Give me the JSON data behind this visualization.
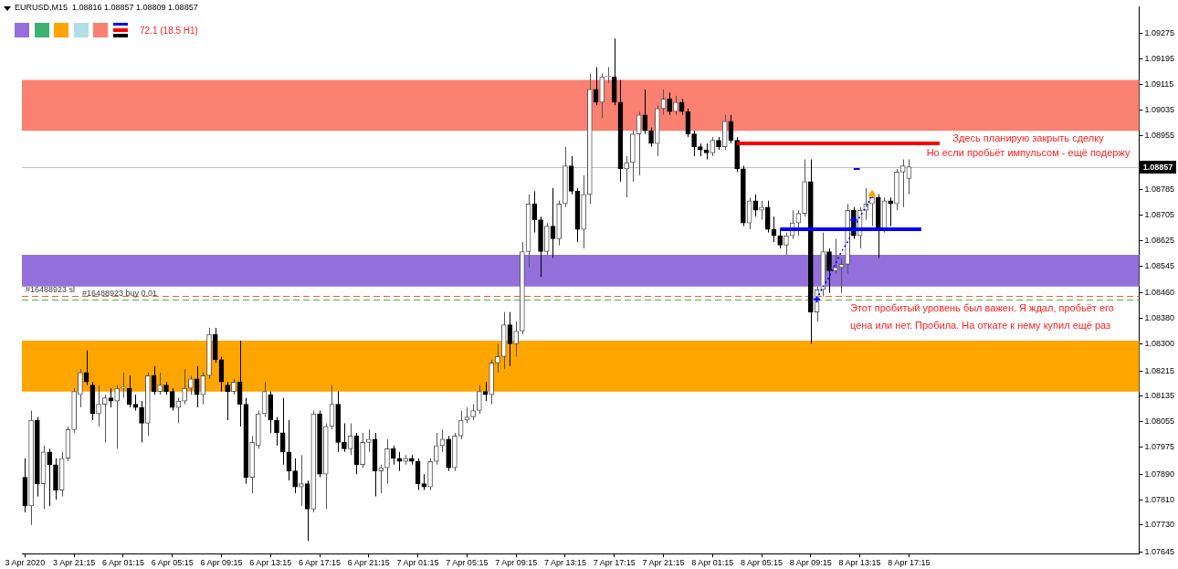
{
  "chart_data": {
    "type": "candlestick",
    "title": "EURUSD,M15  1.08816 1.08857 1.08809 1.08857",
    "categories": [
      "3 Apr 2020",
      null,
      null,
      null,
      null,
      null,
      null,
      null,
      "3 Apr 21:15",
      null,
      null,
      null,
      null,
      null,
      null,
      null,
      "6 Apr 01:15",
      null,
      null,
      null,
      null,
      null,
      null,
      null,
      "6 Apr 05:15",
      null,
      null,
      null,
      null,
      null,
      null,
      null,
      "6 Apr 09:15",
      null,
      null,
      null,
      null,
      null,
      null,
      null,
      "6 Apr 13:15",
      null,
      null,
      null,
      null,
      null,
      null,
      null,
      "6 Apr 17:15",
      null,
      null,
      null,
      null,
      null,
      null,
      null,
      "6 Apr 21:15",
      null,
      null,
      null,
      null,
      null,
      null,
      null,
      "7 Apr 01:15",
      null,
      null,
      null,
      null,
      null,
      null,
      null,
      "7 Apr 05:15",
      null,
      null,
      null,
      null,
      null,
      null,
      null,
      "7 Apr 09:15",
      null,
      null,
      null,
      null,
      null,
      null,
      null,
      "7 Apr 13:15",
      null,
      null,
      null,
      null,
      null,
      null,
      null,
      "7 Apr 17:15",
      null,
      null,
      null,
      null,
      null,
      null,
      null,
      "7 Apr 21:15",
      null,
      null,
      null,
      null,
      null,
      null,
      null,
      "8 Apr 01:15",
      null,
      null,
      null,
      null,
      null,
      null,
      null,
      "8 Apr 05:15",
      null,
      null,
      null,
      null,
      null,
      null,
      null,
      "8 Apr 09:15",
      null,
      null,
      null,
      null,
      null,
      null,
      null,
      "8 Apr 13:15",
      null,
      null,
      null,
      null,
      null,
      null,
      null,
      "8 Apr 17:15",
      null,
      null,
      null,
      null,
      null,
      null,
      null,
      null,
      null,
      null,
      null,
      null,
      null,
      null,
      null,
      null,
      null,
      null,
      null,
      null,
      null,
      null,
      null,
      null,
      null,
      null,
      null,
      null,
      null,
      null,
      null,
      null,
      null,
      null,
      null,
      null,
      null
    ],
    "ohlc": [
      [
        1.0788,
        1.0794,
        1.0777,
        1.0779
      ],
      [
        1.0779,
        1.0809,
        1.0773,
        1.0806
      ],
      [
        1.0806,
        1.0807,
        1.0782,
        1.0786
      ],
      [
        1.0786,
        1.0798,
        1.0778,
        1.0796
      ],
      [
        1.0796,
        1.0797,
        1.0779,
        1.0792
      ],
      [
        1.0792,
        1.0794,
        1.0781,
        1.0784
      ],
      [
        1.0784,
        1.0796,
        1.0782,
        1.0794
      ],
      [
        1.0794,
        1.0804,
        1.0793,
        1.0803
      ],
      [
        1.0803,
        1.0816,
        1.0802,
        1.0815
      ],
      [
        1.0814,
        1.0822,
        1.081,
        1.0821
      ],
      [
        1.0821,
        1.0828,
        1.0817,
        1.0818
      ],
      [
        1.0817,
        1.0818,
        1.0806,
        1.0808
      ],
      [
        1.0808,
        1.0817,
        1.0804,
        1.0811
      ],
      [
        1.0811,
        1.0814,
        1.0799,
        1.0813
      ],
      [
        1.0813,
        1.0816,
        1.081,
        1.0812
      ],
      [
        1.0812,
        1.0817,
        1.0797,
        1.0816
      ],
      [
        1.0816,
        1.0821,
        1.0813,
        1.0816
      ],
      [
        1.0816,
        1.082,
        1.081,
        1.0811
      ],
      [
        1.0811,
        1.0814,
        1.0809,
        1.081
      ],
      [
        1.081,
        1.0812,
        1.0799,
        1.0805
      ],
      [
        1.0805,
        1.0821,
        1.0801,
        1.082
      ],
      [
        1.082,
        1.0823,
        1.0814,
        1.0815
      ],
      [
        1.0815,
        1.0821,
        1.0814,
        1.0817
      ],
      [
        1.0817,
        1.0818,
        1.0814,
        1.0815
      ],
      [
        1.0815,
        1.0816,
        1.0809,
        1.081
      ],
      [
        1.081,
        1.0813,
        1.0805,
        1.0812
      ],
      [
        1.0812,
        1.0822,
        1.0811,
        1.0816
      ],
      [
        1.0816,
        1.082,
        1.0814,
        1.0819
      ],
      [
        1.0819,
        1.0823,
        1.081,
        1.0814
      ],
      [
        1.0814,
        1.0821,
        1.0811,
        1.082
      ],
      [
        1.082,
        1.0835,
        1.0819,
        1.0833
      ],
      [
        1.0833,
        1.0835,
        1.0824,
        1.0825
      ],
      [
        1.0825,
        1.0826,
        1.0815,
        1.0818
      ],
      [
        1.0817,
        1.0818,
        1.0806,
        1.0815
      ],
      [
        1.0815,
        1.0819,
        1.0814,
        1.0818
      ],
      [
        1.0818,
        1.0831,
        1.0804,
        1.0811
      ],
      [
        1.0811,
        1.0813,
        1.0786,
        1.0788
      ],
      [
        1.0788,
        1.0801,
        1.0783,
        1.0799
      ],
      [
        1.0798,
        1.0809,
        1.0797,
        1.0808
      ],
      [
        1.0808,
        1.0818,
        1.0807,
        1.0815
      ],
      [
        1.0814,
        1.0815,
        1.0802,
        1.0806
      ],
      [
        1.0806,
        1.0807,
        1.0798,
        1.0802
      ],
      [
        1.0802,
        1.0813,
        1.0792,
        1.0796
      ],
      [
        1.0796,
        1.0806,
        1.0787,
        1.079
      ],
      [
        1.079,
        1.0794,
        1.0783,
        1.0785
      ],
      [
        1.0785,
        1.0795,
        1.0779,
        1.0786
      ],
      [
        1.0786,
        1.0787,
        1.0768,
        1.0778
      ],
      [
        1.0778,
        1.0809,
        1.0777,
        1.0808
      ],
      [
        1.0808,
        1.0809,
        1.0788,
        1.0789
      ],
      [
        1.0789,
        1.0805,
        1.0778,
        1.0804
      ],
      [
        1.0804,
        1.0817,
        1.0803,
        1.0811
      ],
      [
        1.0811,
        1.0815,
        1.0796,
        1.0799
      ],
      [
        1.0799,
        1.0805,
        1.0796,
        1.0797
      ],
      [
        1.0797,
        1.0805,
        1.0795,
        1.0801
      ],
      [
        1.0801,
        1.0802,
        1.0789,
        1.0792
      ],
      [
        1.0792,
        1.0802,
        1.0791,
        1.0799
      ],
      [
        1.0799,
        1.0803,
        1.0796,
        1.08
      ],
      [
        1.08,
        1.0802,
        1.0782,
        1.079
      ],
      [
        1.079,
        1.0792,
        1.0783,
        1.0791
      ],
      [
        1.0791,
        1.08,
        1.0786,
        1.0797
      ],
      [
        1.0797,
        1.0798,
        1.0792,
        1.0794
      ],
      [
        1.0794,
        1.0796,
        1.079,
        1.0793
      ],
      [
        1.0793,
        1.0795,
        1.0792,
        1.0794
      ],
      [
        1.0794,
        1.0795,
        1.0792,
        1.0793
      ],
      [
        1.0793,
        1.0794,
        1.0784,
        1.0786
      ],
      [
        1.0786,
        1.0789,
        1.0784,
        1.0785
      ],
      [
        1.0785,
        1.0794,
        1.0784,
        1.0793
      ],
      [
        1.0793,
        1.0802,
        1.0792,
        1.0798
      ],
      [
        1.0798,
        1.0803,
        1.0796,
        1.08
      ],
      [
        1.08,
        1.0801,
        1.079,
        1.0791
      ],
      [
        1.0791,
        1.0802,
        1.079,
        1.0801
      ],
      [
        1.0801,
        1.0809,
        1.08,
        1.0806
      ],
      [
        1.0806,
        1.081,
        1.0805,
        1.0807
      ],
      [
        1.0807,
        1.0811,
        1.0806,
        1.0809
      ],
      [
        1.0809,
        1.0817,
        1.0808,
        1.0815
      ],
      [
        1.0815,
        1.0818,
        1.0812,
        1.0814
      ],
      [
        1.0814,
        1.0825,
        1.0811,
        1.0824
      ],
      [
        1.0824,
        1.083,
        1.0821,
        1.0826
      ],
      [
        1.0826,
        1.084,
        1.0822,
        1.0836
      ],
      [
        1.0836,
        1.084,
        1.0823,
        1.083
      ],
      [
        1.083,
        1.0837,
        1.0826,
        1.0834
      ],
      [
        1.0834,
        1.0862,
        1.0833,
        1.0859
      ],
      [
        1.0859,
        1.0877,
        1.0854,
        1.0874
      ],
      [
        1.0874,
        1.0878,
        1.0865,
        1.0869
      ],
      [
        1.0869,
        1.087,
        1.0851,
        1.0859
      ],
      [
        1.0859,
        1.0868,
        1.0858,
        1.0867
      ],
      [
        1.0867,
        1.0879,
        1.0857,
        1.0863
      ],
      [
        1.0863,
        1.0875,
        1.0861,
        1.0874
      ],
      [
        1.0874,
        1.0892,
        1.0873,
        1.0886
      ],
      [
        1.0886,
        1.0889,
        1.0877,
        1.0878
      ],
      [
        1.0878,
        1.0879,
        1.0862,
        1.0866
      ],
      [
        1.0866,
        1.0883,
        1.086,
        1.0877
      ],
      [
        1.0877,
        1.0915,
        1.0874,
        1.091
      ],
      [
        1.091,
        1.0917,
        1.0905,
        1.0906
      ],
      [
        1.0906,
        1.0915,
        1.0901,
        1.0914
      ],
      [
        1.0914,
        1.0917,
        1.0912,
        1.0914
      ],
      [
        1.0914,
        1.0926,
        1.0905,
        1.0906
      ],
      [
        1.0906,
        1.0913,
        1.0881,
        1.0885
      ],
      [
        1.0885,
        1.0889,
        1.0876,
        1.0887
      ],
      [
        1.0887,
        1.0897,
        1.0881,
        1.0896
      ],
      [
        1.0896,
        1.0903,
        1.0883,
        1.0902
      ],
      [
        1.0902,
        1.091,
        1.0896,
        1.0897
      ],
      [
        1.0897,
        1.0898,
        1.0892,
        1.0893
      ],
      [
        1.0893,
        1.0905,
        1.0889,
        1.0904
      ],
      [
        1.0904,
        1.091,
        1.0902,
        1.0907
      ],
      [
        1.0907,
        1.0909,
        1.0902,
        1.0903
      ],
      [
        1.0903,
        1.0908,
        1.0902,
        1.0906
      ],
      [
        1.0906,
        1.0907,
        1.0902,
        1.0903
      ],
      [
        1.0903,
        1.0904,
        1.0895,
        1.0896
      ],
      [
        1.0896,
        1.0897,
        1.0889,
        1.0892
      ],
      [
        1.0892,
        1.0893,
        1.0889,
        1.0891
      ],
      [
        1.0891,
        1.0893,
        1.0888,
        1.089
      ],
      [
        1.089,
        1.0895,
        1.0889,
        1.0894
      ],
      [
        1.0894,
        1.0895,
        1.0891,
        1.0892
      ],
      [
        1.0892,
        1.0902,
        1.0891,
        1.09
      ],
      [
        1.09,
        1.0902,
        1.0893,
        1.0894
      ],
      [
        1.0894,
        1.0895,
        1.0884,
        1.0885
      ],
      [
        1.0885,
        1.0886,
        1.0867,
        1.0868
      ],
      [
        1.0868,
        1.0876,
        1.0866,
        1.0875
      ],
      [
        1.0875,
        1.0877,
        1.087,
        1.0872
      ],
      [
        1.0872,
        1.0875,
        1.0869,
        1.0873
      ],
      [
        1.0873,
        1.0875,
        1.0865,
        1.0866
      ],
      [
        1.0866,
        1.087,
        1.0862,
        1.0864
      ],
      [
        1.0864,
        1.0866,
        1.086,
        1.0861
      ],
      [
        1.0861,
        1.0865,
        1.0858,
        1.0864
      ],
      [
        1.0864,
        1.0872,
        1.0863,
        1.0868
      ],
      [
        1.0868,
        1.0872,
        1.0864,
        1.0871
      ],
      [
        1.0871,
        1.0888,
        1.087,
        1.0881
      ],
      [
        1.0881,
        1.0888,
        1.083,
        1.084
      ],
      [
        1.084,
        1.0848,
        1.0837,
        1.0847
      ],
      [
        1.0847,
        1.0865,
        1.0845,
        1.0859
      ],
      [
        1.0859,
        1.086,
        1.0846,
        1.0853
      ],
      [
        1.0853,
        1.0863,
        1.0852,
        1.0854
      ],
      [
        1.0854,
        1.0857,
        1.0846,
        1.0855
      ],
      [
        1.0855,
        1.0874,
        1.0852,
        1.0872
      ],
      [
        1.0872,
        1.0873,
        1.0863,
        1.0864
      ],
      [
        1.0864,
        1.0873,
        1.086,
        1.0872
      ],
      [
        1.0872,
        1.0879,
        1.0869,
        1.0874
      ],
      [
        1.0874,
        1.0877,
        1.0867,
        1.0876
      ],
      [
        1.0876,
        1.0877,
        1.0857,
        1.0866
      ],
      [
        1.0866,
        1.0876,
        1.0865,
        1.0875
      ],
      [
        1.0875,
        1.0876,
        1.0867,
        1.0874
      ],
      [
        1.0874,
        1.0885,
        1.0872,
        1.0884
      ],
      [
        1.0884,
        1.0888,
        1.0873,
        1.0886
      ],
      [
        1.0882,
        1.0888,
        1.0877,
        1.08857
      ],
      null,
      null,
      null,
      null,
      null,
      null,
      null,
      null,
      null,
      null,
      null,
      null,
      null,
      null,
      null,
      null,
      null,
      null,
      null,
      null,
      null,
      null,
      null,
      null,
      null,
      null,
      null,
      null,
      null,
      null,
      null,
      null,
      null,
      null,
      null,
      null,
      null
    ],
    "colors": [
      "#000000",
      "#555555",
      "#000000",
      "#555555",
      "#000000",
      "#000000",
      "#555555",
      "#555555",
      "#555555",
      "#555555",
      "#000000",
      "#000000",
      "#555555",
      "#555555",
      "#000000",
      "#555555",
      "#555555",
      "#000000",
      "#000000",
      "#000000",
      "#555555",
      "#000000",
      "#555555",
      "#000000",
      "#000000",
      "#555555",
      "#555555",
      "#555555",
      "#000000",
      "#555555",
      "#555555",
      "#000000",
      "#000000",
      "#000000",
      "#555555",
      "#000000",
      "#000000",
      "#555555",
      "#555555",
      "#555555",
      "#000000",
      "#000000",
      "#000000",
      "#000000",
      "#000000",
      "#555555",
      "#000000",
      "#555555",
      "#000000",
      "#555555",
      "#555555",
      "#000000",
      "#000000",
      "#555555",
      "#000000",
      "#555555",
      "#555555",
      "#000000",
      "#555555",
      "#555555",
      "#000000",
      "#000000",
      "#555555",
      "#000000",
      "#000000",
      "#000000",
      "#555555",
      "#555555",
      "#555555",
      "#000000",
      "#555555",
      "#555555",
      "#555555",
      "#555555",
      "#555555",
      "#000000",
      "#555555",
      "#555555",
      "#555555",
      "#000000",
      "#555555",
      "#555555",
      "#555555",
      "#000000",
      "#000000",
      "#555555",
      "#000000",
      "#555555",
      "#555555",
      "#000000",
      "#000000",
      "#555555",
      "#555555",
      "#000000",
      "#555555",
      "#555555",
      "#000000",
      "#000000",
      "#555555",
      "#555555",
      "#555555",
      "#000000",
      "#000000",
      "#555555",
      "#555555",
      "#000000",
      "#555555",
      "#000000",
      "#000000",
      "#000000",
      "#000000",
      "#000000",
      "#555555",
      "#000000",
      "#555555",
      "#000000",
      "#000000",
      "#000000",
      "#555555",
      "#000000",
      "#555555",
      "#000000",
      "#000000",
      "#000000",
      "#555555",
      "#555555",
      "#555555",
      "#555555",
      "#000000",
      "#555555",
      "#555555",
      "#000000",
      "#555555",
      "#555555",
      "#555555",
      "#000000",
      "#555555",
      "#555555",
      "#555555",
      "#000000",
      "#555555",
      "#000000",
      "#555555",
      "#555555",
      "#555555",
      null,
      null,
      null,
      null,
      null,
      null,
      null,
      null,
      null,
      null,
      null,
      null,
      null,
      null,
      null,
      null,
      null,
      null,
      null,
      null,
      null,
      null,
      null,
      null,
      null,
      null,
      null,
      null,
      null,
      null,
      null,
      null,
      null,
      null,
      null,
      null,
      null
    ],
    "series": [
      {
        "type": "line",
        "color": "#ff0000",
        "values": [
          null,
          null,
          null,
          null,
          null,
          null,
          null,
          null,
          null,
          null,
          null,
          null,
          null,
          null,
          null,
          null,
          null,
          null,
          null,
          null,
          null,
          null,
          null,
          null,
          null,
          null,
          null,
          null,
          null,
          null,
          null,
          null,
          null,
          null,
          null,
          null,
          null,
          null,
          null,
          null,
          null,
          null,
          null,
          null,
          null,
          null,
          null,
          null,
          null,
          null,
          null,
          null,
          null,
          null,
          null,
          null,
          null,
          null,
          null,
          null,
          null,
          null,
          null,
          null,
          null,
          null,
          null,
          null,
          null,
          null,
          null,
          null,
          null,
          null,
          null,
          null,
          null,
          null,
          null,
          null,
          null,
          null,
          null,
          null,
          null,
          null,
          null,
          null,
          null,
          null,
          null,
          null,
          null,
          null,
          null,
          null,
          null,
          null,
          null,
          null,
          null,
          null,
          null,
          null,
          null,
          null,
          null,
          null,
          null,
          null,
          null,
          null,
          null,
          null,
          null,
          null,
          1.0893,
          1.0893,
          1.0893,
          1.0893,
          1.0893,
          1.0893,
          1.0893,
          1.0893,
          1.0893,
          1.0893,
          1.0893,
          1.0893,
          1.0893,
          1.0893,
          1.0893,
          1.0893,
          1.0893,
          1.0893,
          1.0893,
          1.0893,
          1.0893,
          1.0893,
          1.0893,
          1.0893,
          1.0893,
          1.0893,
          1.0893,
          1.0893,
          1.0893,
          1.0893,
          1.0893,
          1.0893,
          1.0893,
          1.0893,
          null,
          null,
          null,
          null,
          null,
          null,
          null,
          null,
          null,
          null,
          null,
          null,
          null,
          null,
          null,
          null,
          null,
          null,
          null,
          null,
          null,
          null,
          null,
          null,
          null,
          null,
          null,
          null,
          null,
          null,
          null,
          null
        ]
      },
      {
        "type": "line",
        "color": "#0000ff",
        "values": [
          null,
          null,
          null,
          null,
          null,
          null,
          null,
          null,
          null,
          null,
          null,
          null,
          null,
          null,
          null,
          null,
          null,
          null,
          null,
          null,
          null,
          null,
          null,
          null,
          null,
          null,
          null,
          null,
          null,
          null,
          null,
          null,
          null,
          null,
          null,
          null,
          null,
          null,
          null,
          null,
          null,
          null,
          null,
          null,
          null,
          null,
          null,
          null,
          null,
          null,
          null,
          null,
          null,
          null,
          null,
          null,
          null,
          null,
          null,
          null,
          null,
          null,
          null,
          null,
          null,
          null,
          null,
          null,
          null,
          null,
          null,
          null,
          null,
          null,
          null,
          null,
          null,
          null,
          null,
          null,
          null,
          null,
          null,
          null,
          null,
          null,
          null,
          null,
          null,
          null,
          null,
          null,
          null,
          null,
          null,
          null,
          null,
          null,
          null,
          null,
          null,
          null,
          null,
          null,
          null,
          null,
          null,
          null,
          null,
          null,
          null,
          null,
          null,
          null,
          null,
          null,
          null,
          null,
          null,
          null,
          null,
          null,
          null,
          1.0866,
          1.0866,
          1.0866,
          1.0866,
          1.0866,
          1.0866,
          1.0866,
          1.0866,
          1.0866,
          1.0866,
          1.0866,
          1.0866,
          1.0866,
          1.0866,
          1.0866,
          1.0866,
          1.0866,
          1.0866,
          1.0866,
          1.0866,
          1.0866,
          1.0866,
          1.0866,
          1.0866,
          null,
          null,
          null,
          null,
          null,
          null,
          null,
          null,
          null,
          null,
          null,
          null,
          null,
          null,
          null,
          null,
          null,
          null,
          null,
          null,
          null,
          null,
          null,
          null,
          null,
          null,
          null,
          null,
          null,
          null,
          null,
          null,
          null,
          null,
          null
        ]
      },
      {
        "type": "line",
        "color": "#0000ff",
        "line_style": "dotted",
        "values": [
          null,
          null,
          null,
          null,
          null,
          null,
          null,
          null,
          null,
          null,
          null,
          null,
          null,
          null,
          null,
          null,
          null,
          null,
          null,
          null,
          null,
          null,
          null,
          null,
          null,
          null,
          null,
          null,
          null,
          null,
          null,
          null,
          null,
          null,
          null,
          null,
          null,
          null,
          null,
          null,
          null,
          null,
          null,
          null,
          null,
          null,
          null,
          null,
          null,
          null,
          null,
          null,
          null,
          null,
          null,
          null,
          null,
          null,
          null,
          null,
          null,
          null,
          null,
          null,
          null,
          null,
          null,
          null,
          null,
          null,
          null,
          null,
          null,
          null,
          null,
          null,
          null,
          null,
          null,
          null,
          null,
          null,
          null,
          null,
          null,
          null,
          null,
          null,
          null,
          null,
          null,
          null,
          null,
          null,
          null,
          null,
          null,
          null,
          null,
          null,
          null,
          null,
          null,
          null,
          null,
          null,
          null,
          null,
          null,
          null,
          null,
          null,
          null,
          null,
          null,
          null,
          null,
          null,
          null,
          null,
          null,
          null,
          null,
          null,
          null,
          null,
          null,
          null,
          null,
          1.0844,
          1.0848,
          1.0851,
          1.0855,
          1.0859,
          1.0862,
          1.0866,
          1.087,
          1.0873,
          1.0877,
          null,
          null,
          null,
          null,
          null,
          null,
          null,
          null,
          null,
          null,
          null,
          null,
          null,
          null,
          null,
          null,
          null,
          null,
          null,
          null,
          null,
          null,
          null,
          null,
          null,
          null,
          null,
          null,
          null,
          null,
          null,
          null,
          null,
          null,
          null,
          null,
          null,
          null,
          null,
          null,
          null,
          null,
          null
        ]
      },
      {
        "type": "scatter",
        "color": "#0000ff",
        "marker": "cross",
        "values": [
          null,
          null,
          null,
          null,
          null,
          null,
          null,
          null,
          null,
          null,
          null,
          null,
          null,
          null,
          null,
          null,
          null,
          null,
          null,
          null,
          null,
          null,
          null,
          null,
          null,
          null,
          null,
          null,
          null,
          null,
          null,
          null,
          null,
          null,
          null,
          null,
          null,
          null,
          null,
          null,
          null,
          null,
          null,
          null,
          null,
          null,
          null,
          null,
          null,
          null,
          null,
          null,
          null,
          null,
          null,
          null,
          null,
          null,
          null,
          null,
          null,
          null,
          null,
          null,
          null,
          null,
          null,
          null,
          null,
          null,
          null,
          null,
          null,
          null,
          null,
          null,
          null,
          null,
          null,
          null,
          null,
          null,
          null,
          null,
          null,
          null,
          null,
          null,
          null,
          null,
          null,
          null,
          null,
          null,
          null,
          null,
          null,
          null,
          null,
          null,
          null,
          null,
          null,
          null,
          null,
          null,
          null,
          null,
          null,
          null,
          null,
          null,
          null,
          null,
          null,
          null,
          null,
          null,
          null,
          null,
          null,
          null,
          null,
          null,
          null,
          null,
          null,
          null,
          null,
          1.0844,
          null,
          null,
          null,
          null,
          null,
          1.0869,
          null,
          null,
          null,
          null,
          null,
          null,
          null,
          null,
          null,
          null,
          null,
          null,
          null,
          null,
          null,
          null,
          null,
          null,
          null,
          null,
          null,
          null,
          null,
          null,
          null,
          null,
          null,
          null,
          null,
          null,
          null,
          null,
          null,
          null,
          null,
          null,
          null,
          null,
          null,
          null,
          null,
          null,
          null,
          null,
          null,
          null
        ]
      },
      {
        "type": "scatter",
        "color": "#ffa500",
        "marker": "triangle",
        "values": [
          null,
          null,
          null,
          null,
          null,
          null,
          null,
          null,
          null,
          null,
          null,
          null,
          null,
          null,
          null,
          null,
          null,
          null,
          null,
          null,
          null,
          null,
          null,
          null,
          null,
          null,
          null,
          null,
          null,
          null,
          null,
          null,
          null,
          null,
          null,
          null,
          null,
          null,
          null,
          null,
          null,
          null,
          null,
          null,
          null,
          null,
          null,
          null,
          null,
          null,
          null,
          null,
          null,
          null,
          null,
          null,
          null,
          null,
          null,
          null,
          null,
          null,
          null,
          null,
          null,
          null,
          null,
          null,
          null,
          null,
          null,
          null,
          null,
          null,
          null,
          null,
          null,
          null,
          null,
          null,
          null,
          null,
          null,
          null,
          null,
          null,
          null,
          null,
          null,
          null,
          null,
          null,
          null,
          null,
          null,
          null,
          null,
          null,
          null,
          null,
          null,
          null,
          null,
          null,
          null,
          null,
          null,
          null,
          null,
          null,
          null,
          null,
          null,
          null,
          null,
          null,
          null,
          null,
          null,
          null,
          null,
          null,
          null,
          null,
          null,
          null,
          null,
          null,
          null,
          null,
          null,
          null,
          null,
          null,
          null,
          null,
          null,
          null,
          1.0877,
          null,
          null,
          null,
          null,
          null,
          null,
          null,
          null,
          null,
          null,
          null,
          null,
          null,
          null,
          null,
          null,
          null,
          null,
          null,
          null,
          null,
          null,
          null,
          null,
          null,
          null,
          null,
          null,
          null,
          null,
          null,
          null,
          null,
          null,
          null,
          null,
          null,
          null,
          null,
          null,
          null,
          null,
          null
        ]
      },
      {
        "type": "line",
        "color": "#0000ff",
        "values": [
          null,
          null,
          null,
          null,
          null,
          null,
          null,
          null,
          null,
          null,
          null,
          null,
          null,
          null,
          null,
          null,
          null,
          null,
          null,
          null,
          null,
          null,
          null,
          null,
          null,
          null,
          null,
          null,
          null,
          null,
          null,
          null,
          null,
          null,
          null,
          null,
          null,
          null,
          null,
          null,
          null,
          null,
          null,
          null,
          null,
          null,
          null,
          null,
          null,
          null,
          null,
          null,
          null,
          null,
          null,
          null,
          null,
          null,
          null,
          null,
          null,
          null,
          null,
          null,
          null,
          null,
          null,
          null,
          null,
          null,
          null,
          null,
          null,
          null,
          null,
          null,
          null,
          null,
          null,
          null,
          null,
          null,
          null,
          null,
          null,
          null,
          null,
          null,
          null,
          null,
          null,
          null,
          null,
          null,
          null,
          null,
          null,
          null,
          null,
          null,
          null,
          null,
          null,
          null,
          null,
          null,
          null,
          null,
          null,
          null,
          null,
          null,
          null,
          null,
          null,
          null,
          null,
          null,
          null,
          null,
          null,
          null,
          null,
          null,
          null,
          null,
          null,
          null,
          null,
          null,
          null,
          null,
          null,
          null,
          null,
          1.0885,
          1.0885,
          null,
          null,
          null,
          null,
          null,
          null,
          null,
          null,
          null,
          null,
          null,
          null,
          null,
          null,
          null,
          null,
          null,
          null,
          null,
          null,
          null,
          null,
          null,
          null,
          null,
          null,
          null,
          null,
          null,
          null,
          null,
          null,
          null,
          null,
          null,
          null,
          null,
          null,
          null,
          null,
          null,
          null,
          null,
          null,
          null
        ]
      }
    ],
    "ylim": [
      1.0764,
      1.0936
    ],
    "yticks": [
      1.07645,
      {
        "value": 1.0773,
        "label": "1.07730"
      },
      {
        "value": 1.0781,
        "label": "1.07810"
      },
      {
        "value": 1.0789,
        "label": "1.07890"
      },
      1.07975,
      1.08055,
      1.08135,
      1.08215,
      {
        "value": 1.083,
        "label": "1.08300"
      },
      {
        "value": 1.0838,
        "label": "1.08380"
      },
      {
        "value": 1.0846,
        "label": "1.08460"
      },
      1.08545,
      1.08625,
      1.08705,
      1.08785,
      1.08955,
      1.09035,
      1.09115,
      1.09195,
      1.09275
    ],
    "bands": [
      {
        "axis": "y",
        "from": 1.0897,
        "to": 1.0913,
        "color": "#fa8072"
      },
      {
        "axis": "y",
        "from": 1.0848,
        "to": 1.0858,
        "color": "#9370db"
      },
      {
        "axis": "y",
        "from": 1.0815,
        "to": 1.0831,
        "color": "#ffa500"
      }
    ],
    "ref_lines": [
      {
        "axis": "y",
        "value": 1.08857,
        "label": "1.08857",
        "color": "#c0c0c0"
      },
      {
        "axis": "y",
        "value": 1.0845,
        "label": "#16488923 sl",
        "color": "#ff5a28",
        "line_style": "dashed"
      },
      {
        "axis": "y",
        "value": 1.0844,
        "label": "#16488923 buy 0.01",
        "color": "#4caf50",
        "line_style": "dashed"
      }
    ],
    "annotations": [
      "72.1 (18.5 H1)",
      "Здесь планирую закрыть сделку",
      "Но если пробьёт импульсом - ещё подержу",
      "Этот пробитый уровень был важен. Я ждал, пробьёт его",
      "цена или нет. Пробила. На откате к нему купил ещё раз"
    ]
  }
}
